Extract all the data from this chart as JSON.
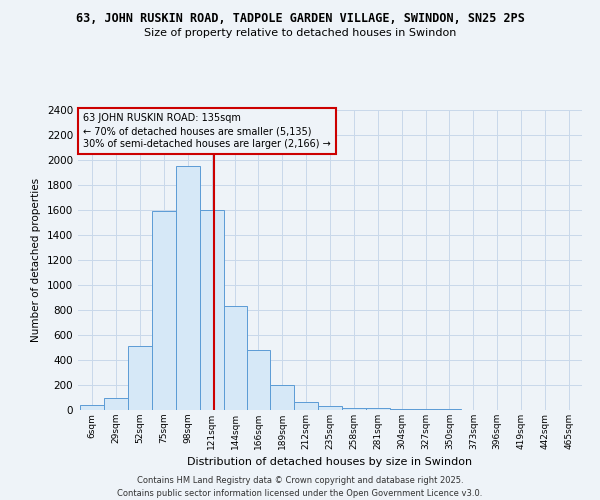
{
  "title": "63, JOHN RUSKIN ROAD, TADPOLE GARDEN VILLAGE, SWINDON, SN25 2PS",
  "subtitle": "Size of property relative to detached houses in Swindon",
  "xlabel": "Distribution of detached houses by size in Swindon",
  "ylabel": "Number of detached properties",
  "annotation_line1": "63 JOHN RUSKIN ROAD: 135sqm",
  "annotation_line2": "← 70% of detached houses are smaller (5,135)",
  "annotation_line3": "30% of semi-detached houses are larger (2,166) →",
  "red_line_x": 135,
  "bar_edges": [
    6,
    29,
    52,
    75,
    98,
    121,
    144,
    166,
    189,
    212,
    235,
    258,
    281,
    304,
    327,
    350,
    373,
    396,
    419,
    442,
    465
  ],
  "bar_heights": [
    40,
    100,
    510,
    1590,
    1950,
    1600,
    830,
    480,
    200,
    65,
    35,
    20,
    15,
    10,
    8,
    5,
    4,
    3,
    2,
    1,
    0
  ],
  "bar_color": "#d6e8f7",
  "bar_edgecolor": "#5b9bd5",
  "red_line_color": "#cc0000",
  "grid_color": "#c8d8ea",
  "bg_color": "#eef3f8",
  "annotation_box_color": "#cc0000",
  "ylim": [
    0,
    2400
  ],
  "yticks": [
    0,
    200,
    400,
    600,
    800,
    1000,
    1200,
    1400,
    1600,
    1800,
    2000,
    2200,
    2400
  ],
  "footer_line1": "Contains HM Land Registry data © Crown copyright and database right 2025.",
  "footer_line2": "Contains public sector information licensed under the Open Government Licence v3.0."
}
